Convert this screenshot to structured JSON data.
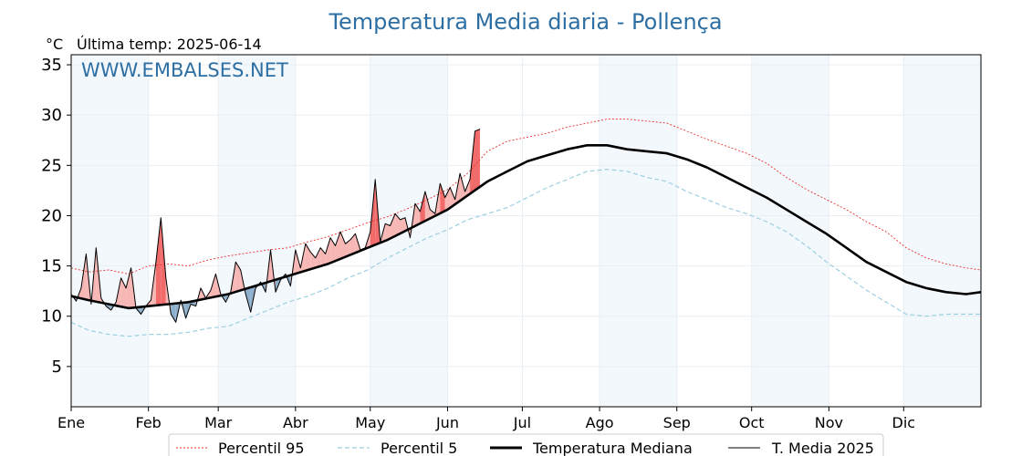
{
  "chart_data": {
    "type": "line",
    "title": "Temperatura Media diaria - Pollença",
    "unit_label": "°C",
    "subtitle": "Última temp: 2025-06-14",
    "watermark": "WWW.EMBALSES.NET",
    "ylim": [
      1,
      36
    ],
    "yticks": [
      5,
      10,
      15,
      20,
      25,
      30,
      35
    ],
    "xlim": [
      1,
      366
    ],
    "x_axis_unit": "día del año",
    "months": [
      "Ene",
      "Feb",
      "Mar",
      "Abr",
      "May",
      "Jun",
      "Jul",
      "Ago",
      "Sep",
      "Oct",
      "Nov",
      "Dic"
    ],
    "month_start_days": [
      1,
      32,
      60,
      91,
      121,
      152,
      182,
      213,
      244,
      274,
      305,
      335
    ],
    "grid": true,
    "shaded_months": [
      "Ene",
      "Mar",
      "May",
      "Ago",
      "Oct",
      "Dic"
    ],
    "legend_position": "bottom-center",
    "series": [
      {
        "name": "Percentil 95",
        "style": "dotted",
        "color": "#e8302a",
        "x": [
          1,
          8,
          16,
          24,
          32,
          40,
          48,
          56,
          64,
          72,
          80,
          88,
          96,
          104,
          112,
          120,
          128,
          136,
          144,
          152,
          160,
          168,
          176,
          184,
          192,
          200,
          208,
          216,
          224,
          232,
          240,
          248,
          256,
          264,
          272,
          280,
          288,
          296,
          304,
          312,
          320,
          328,
          336,
          344,
          352,
          360,
          366
        ],
        "values": [
          14.8,
          14.4,
          14.6,
          14.2,
          15.0,
          15.2,
          15.0,
          15.6,
          16.0,
          16.3,
          16.6,
          16.8,
          17.4,
          17.9,
          18.6,
          19.3,
          19.9,
          20.7,
          21.6,
          22.6,
          24.2,
          26.4,
          27.4,
          27.8,
          28.2,
          28.8,
          29.2,
          29.6,
          29.6,
          29.4,
          29.2,
          28.4,
          27.6,
          26.9,
          26.2,
          25.2,
          23.8,
          22.6,
          21.6,
          20.6,
          19.4,
          18.4,
          16.8,
          15.8,
          15.2,
          14.8,
          14.6
        ]
      },
      {
        "name": "Percentil 5",
        "style": "dashed",
        "color": "#9ecfe0",
        "x": [
          1,
          8,
          16,
          24,
          32,
          40,
          48,
          56,
          64,
          72,
          80,
          88,
          96,
          104,
          112,
          120,
          128,
          136,
          144,
          152,
          160,
          168,
          176,
          184,
          192,
          200,
          208,
          216,
          224,
          232,
          240,
          248,
          256,
          264,
          272,
          280,
          288,
          296,
          304,
          312,
          320,
          328,
          336,
          344,
          352,
          360,
          366
        ],
        "values": [
          9.4,
          8.6,
          8.2,
          8.0,
          8.2,
          8.2,
          8.4,
          8.8,
          9.0,
          9.8,
          10.6,
          11.4,
          12.0,
          12.8,
          13.8,
          14.6,
          15.8,
          16.8,
          17.8,
          18.6,
          19.6,
          20.2,
          20.8,
          21.8,
          22.8,
          23.6,
          24.4,
          24.6,
          24.4,
          23.8,
          23.4,
          22.4,
          21.6,
          20.8,
          20.2,
          19.4,
          18.4,
          17.0,
          15.4,
          14.0,
          12.6,
          11.4,
          10.2,
          10.0,
          10.2,
          10.2,
          10.2
        ]
      },
      {
        "name": "Temperatura Mediana",
        "style": "solid-thick",
        "color": "#000000",
        "x": [
          1,
          8,
          16,
          24,
          32,
          40,
          48,
          56,
          64,
          72,
          80,
          88,
          96,
          104,
          112,
          120,
          128,
          136,
          144,
          152,
          160,
          168,
          176,
          184,
          192,
          200,
          208,
          216,
          224,
          232,
          240,
          248,
          256,
          264,
          272,
          280,
          288,
          296,
          304,
          312,
          320,
          328,
          336,
          344,
          352,
          360,
          366
        ],
        "values": [
          12.0,
          11.6,
          11.2,
          10.8,
          11.0,
          11.2,
          11.4,
          11.8,
          12.2,
          12.8,
          13.4,
          14.0,
          14.6,
          15.2,
          16.0,
          16.8,
          17.6,
          18.6,
          19.6,
          20.6,
          22.0,
          23.4,
          24.4,
          25.4,
          26.0,
          26.6,
          27.0,
          27.0,
          26.6,
          26.4,
          26.2,
          25.6,
          24.8,
          23.8,
          22.8,
          21.8,
          20.6,
          19.4,
          18.2,
          16.8,
          15.4,
          14.4,
          13.4,
          12.8,
          12.4,
          12.2,
          12.4
        ]
      },
      {
        "name": "T. Media 2025",
        "style": "solid-thin",
        "color": "#000000",
        "x": [
          1,
          3,
          5,
          7,
          9,
          11,
          13,
          15,
          17,
          19,
          21,
          23,
          25,
          27,
          29,
          31,
          33,
          35,
          37,
          39,
          41,
          43,
          45,
          47,
          49,
          51,
          53,
          55,
          57,
          59,
          61,
          63,
          65,
          67,
          69,
          71,
          73,
          75,
          77,
          79,
          81,
          83,
          85,
          87,
          89,
          91,
          93,
          95,
          97,
          99,
          101,
          103,
          105,
          107,
          109,
          111,
          113,
          115,
          117,
          119,
          121,
          123,
          125,
          127,
          129,
          131,
          133,
          135,
          137,
          139,
          141,
          143,
          145,
          147,
          149,
          151,
          153,
          155,
          157,
          159,
          161,
          163,
          165
        ],
        "values": [
          12.2,
          11.5,
          12.8,
          16.2,
          11.2,
          16.8,
          11.8,
          11.0,
          10.6,
          11.4,
          13.8,
          12.8,
          14.8,
          10.8,
          10.2,
          11.0,
          11.6,
          15.4,
          19.8,
          13.8,
          10.2,
          9.4,
          11.6,
          9.8,
          11.2,
          11.0,
          12.8,
          11.8,
          12.6,
          14.2,
          12.2,
          11.4,
          12.4,
          15.4,
          14.6,
          12.2,
          10.4,
          12.8,
          13.4,
          12.4,
          16.6,
          12.4,
          13.6,
          14.2,
          13.0,
          16.6,
          14.8,
          17.2,
          16.4,
          15.8,
          16.8,
          16.2,
          17.8,
          17.0,
          18.4,
          17.2,
          17.6,
          18.2,
          16.6,
          16.8,
          18.4,
          23.6,
          17.4,
          19.2,
          19.0,
          20.2,
          19.6,
          19.8,
          17.8,
          21.2,
          20.4,
          22.4,
          20.6,
          20.2,
          23.2,
          21.8,
          22.8,
          21.6,
          24.2,
          22.4,
          23.6,
          28.4,
          28.6
        ]
      }
    ]
  }
}
